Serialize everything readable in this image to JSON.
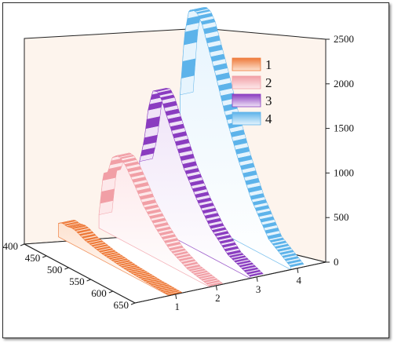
{
  "chart_data": {
    "type": "area",
    "view": "3d-waterfall",
    "x_ticks": [
      400,
      450,
      500,
      550,
      600,
      650
    ],
    "y_ticks": [
      1,
      2,
      3,
      4
    ],
    "z_ticks": [
      0,
      500,
      1000,
      1500,
      2000,
      2500
    ],
    "z_range": [
      0,
      2500
    ],
    "x_range": [
      400,
      650
    ],
    "legend_position": "top-right",
    "series": [
      {
        "name": "1",
        "depth": 1,
        "color_dark": "#ee7a3a",
        "color_light": "#fde2d0",
        "x": [
          400,
          405,
          410,
          415,
          420,
          430,
          440,
          460,
          500,
          550,
          600,
          650
        ],
        "values": [
          150,
          170,
          178,
          172,
          168,
          180,
          170,
          120,
          70,
          35,
          15,
          5
        ]
      },
      {
        "name": "2",
        "depth": 2,
        "color_dark": "#f19fa6",
        "color_light": "#fde8ea",
        "x": [
          400,
          410,
          420,
          430,
          440,
          450,
          460,
          480,
          500,
          530,
          560,
          600,
          650
        ],
        "values": [
          150,
          640,
          680,
          870,
          920,
          910,
          860,
          700,
          520,
          330,
          180,
          70,
          10
        ]
      },
      {
        "name": "3",
        "depth": 3,
        "color_dark": "#8a3cc0",
        "color_light": "#efe3f7",
        "x": [
          400,
          410,
          420,
          430,
          440,
          450,
          460,
          480,
          500,
          530,
          560,
          600,
          650
        ],
        "values": [
          650,
          900,
          1300,
          1520,
          1540,
          1470,
          1340,
          1090,
          840,
          560,
          330,
          130,
          20
        ]
      },
      {
        "name": "4",
        "depth": 4,
        "color_dark": "#5db3ea",
        "color_light": "#e6f4fd",
        "x": [
          400,
          410,
          420,
          430,
          440,
          450,
          460,
          480,
          500,
          530,
          560,
          600,
          650
        ],
        "values": [
          1300,
          2000,
          2300,
          2330,
          2310,
          2220,
          2060,
          1740,
          1380,
          940,
          560,
          210,
          30
        ]
      }
    ]
  }
}
